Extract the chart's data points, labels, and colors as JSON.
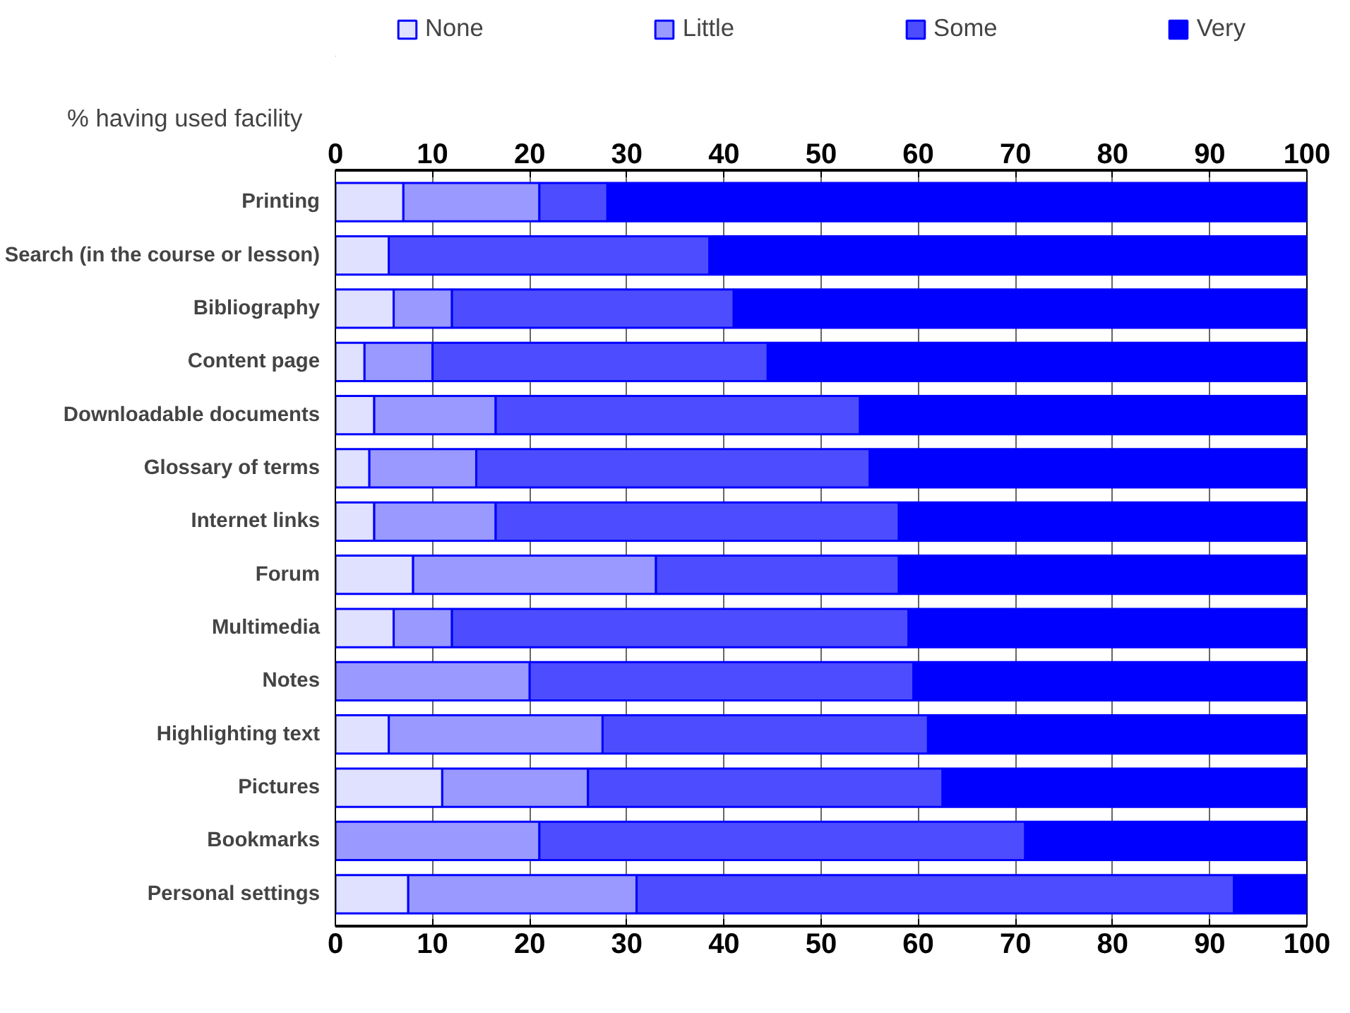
{
  "chart_data": {
    "type": "bar",
    "orientation": "horizontal",
    "stacked": true,
    "subtitle": "% having used facility",
    "categories": [
      "Printing",
      "Search (in the course or lesson)",
      "Bibliography",
      "Content page",
      "Downloadable documents",
      "Glossary of terms",
      "Internet links",
      "Forum",
      "Multimedia",
      "Notes",
      "Highlighting text",
      "Pictures",
      "Bookmarks",
      "Personal settings"
    ],
    "series": [
      {
        "name": "None",
        "color": "#e0e0ff",
        "values": [
          7,
          5.5,
          6,
          3,
          4,
          3.5,
          4,
          8,
          6,
          0,
          5.5,
          11,
          0,
          7.5
        ]
      },
      {
        "name": "Little",
        "color": "#9999ff",
        "values": [
          14,
          0,
          6,
          7,
          12.5,
          11,
          12.5,
          25,
          6,
          20,
          22,
          15,
          21,
          23.5
        ]
      },
      {
        "name": "Some",
        "color": "#4d4dff",
        "values": [
          7,
          33,
          29,
          34.5,
          37.5,
          40.5,
          41.5,
          25,
          47,
          39.5,
          33.5,
          36.5,
          50,
          61.5
        ]
      },
      {
        "name": "Very",
        "color": "#0000ff",
        "values": [
          72,
          61.5,
          59,
          55.5,
          46,
          45,
          42,
          42,
          41,
          40.5,
          39,
          37.5,
          29,
          7.5
        ]
      }
    ],
    "xlim": [
      0,
      100
    ],
    "xticks": [
      0,
      10,
      20,
      30,
      40,
      50,
      60,
      70,
      80,
      90,
      100
    ],
    "x2lim": [
      0,
      100
    ],
    "x2ticks": [
      0,
      10,
      20,
      30,
      40,
      50,
      60,
      70,
      80,
      90,
      100
    ],
    "grid": "x",
    "legend": "top"
  }
}
